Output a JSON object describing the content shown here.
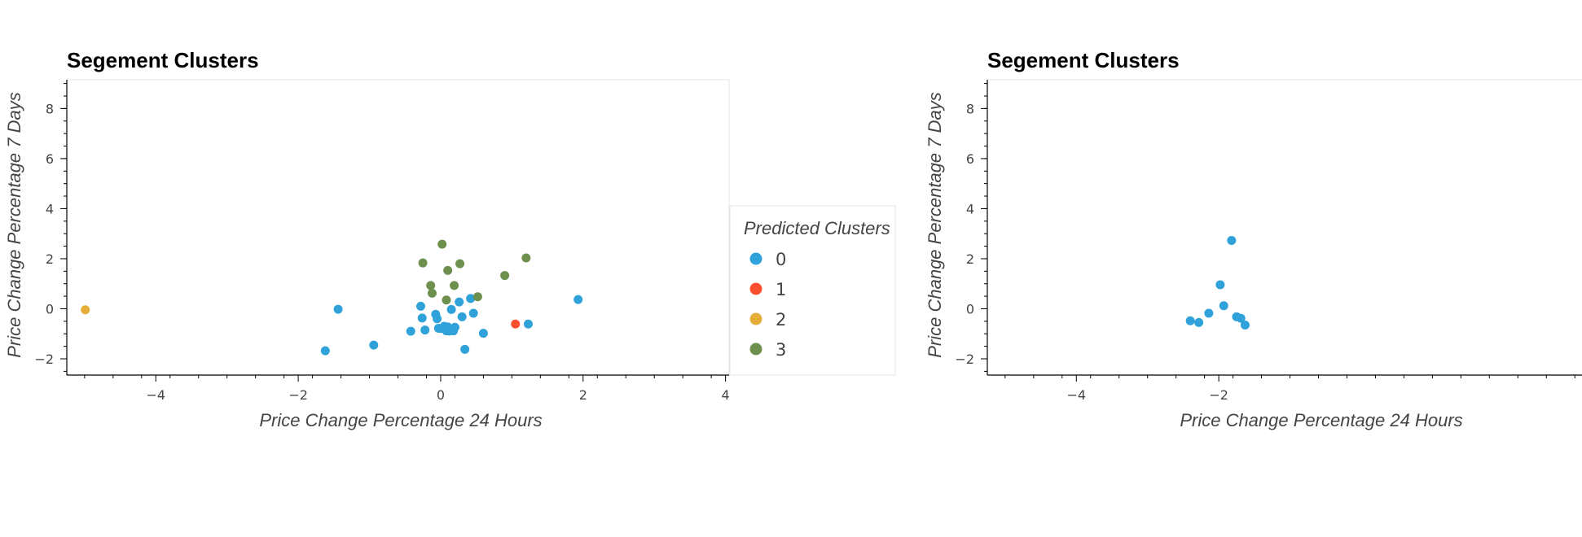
{
  "chart_data": [
    {
      "type": "scatter",
      "title": "Segement Clusters",
      "xlabel": "Price Change Percentage 24 Hours",
      "ylabel": "Price Change Percentage 7 Days",
      "xlim": [
        -5.25,
        4.05
      ],
      "ylim": [
        -2.65,
        9.15
      ],
      "x_ticks": [
        "−4",
        "−2",
        "0",
        "2",
        "4"
      ],
      "x_tick_values": [
        -4,
        -2,
        0,
        2,
        4
      ],
      "y_ticks": [
        "−2",
        "0",
        "2",
        "4",
        "6",
        "8"
      ],
      "y_tick_values": [
        -2,
        0,
        2,
        4,
        6,
        8
      ],
      "grid": false,
      "legend": {
        "title": "Predicted Clusters",
        "placement": "right",
        "entries": [
          "0",
          "1",
          "2",
          "3"
        ]
      },
      "series": [
        {
          "name": "0",
          "color": "#30a2da",
          "x": [
            -1.62,
            -1.44,
            -0.94,
            -0.42,
            -0.28,
            -0.26,
            -0.22,
            -0.07,
            -0.05,
            -0.03,
            0.0,
            0.05,
            0.08,
            0.1,
            0.12,
            0.15,
            0.18,
            0.2,
            0.26,
            0.3,
            0.34,
            0.42,
            0.46,
            0.6,
            1.23,
            1.93
          ],
          "y": [
            -1.68,
            -0.02,
            -1.45,
            -0.9,
            0.1,
            -0.37,
            -0.85,
            -0.22,
            -0.4,
            -0.78,
            -0.79,
            -0.7,
            -0.88,
            -0.73,
            -0.89,
            -0.03,
            -0.88,
            -0.74,
            0.27,
            -0.32,
            -1.62,
            0.41,
            -0.18,
            -0.98,
            -0.61,
            0.37
          ]
        },
        {
          "name": "1",
          "color": "#fc4f30",
          "x": [
            1.05
          ],
          "y": [
            -0.61
          ]
        },
        {
          "name": "2",
          "color": "#e5ae38",
          "x": [
            -4.99
          ],
          "y": [
            -0.04
          ]
        },
        {
          "name": "3",
          "color": "#6d904f",
          "x": [
            -0.25,
            -0.14,
            -0.12,
            0.02,
            0.08,
            0.1,
            0.19,
            0.27,
            0.52,
            0.9,
            1.2
          ],
          "y": [
            1.83,
            0.93,
            0.62,
            2.58,
            0.35,
            1.53,
            0.93,
            1.8,
            0.48,
            1.33,
            2.03
          ]
        }
      ]
    },
    {
      "type": "scatter",
      "title": "Segement Clusters",
      "xlabel": "Price Change Percentage 24 Hours",
      "ylabel": "Price Change Percentage 7 Days",
      "xlim": [
        -5.25,
        4.05
      ],
      "ylim": [
        -2.65,
        9.15
      ],
      "x_ticks": [
        "−4",
        "−2"
      ],
      "x_tick_values": [
        -4,
        -2
      ],
      "y_ticks": [
        "−2",
        "0",
        "2",
        "4",
        "6",
        "8"
      ],
      "y_tick_values": [
        -2,
        0,
        2,
        4,
        6,
        8
      ],
      "grid": false,
      "series": [
        {
          "name": "0",
          "color": "#30a2da",
          "x": [
            -2.4,
            -2.28,
            -2.14,
            -1.98,
            -1.93,
            -1.82,
            -1.75,
            -1.69,
            -1.63
          ],
          "y": [
            -0.48,
            -0.55,
            -0.18,
            0.96,
            0.12,
            2.73,
            -0.32,
            -0.38,
            -0.65
          ]
        }
      ]
    }
  ]
}
